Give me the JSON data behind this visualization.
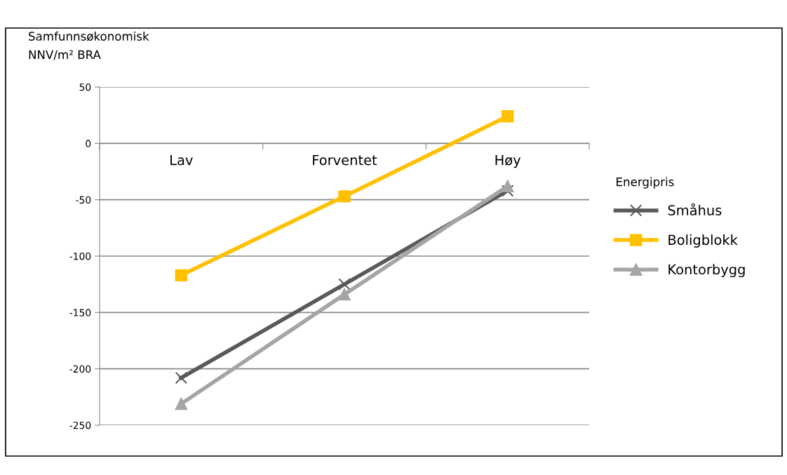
{
  "chart_data": {
    "type": "line",
    "ylabel": "Samfunnsøkonomisk\nNNV/m² BRA",
    "legend_title": "Energipris",
    "categories": [
      "Lav",
      "Forventet",
      "Høy"
    ],
    "series": [
      {
        "name": "Småhus",
        "color": "#595959",
        "marker": "cross",
        "values": [
          -208,
          -125,
          -42
        ]
      },
      {
        "name": "Boligblokk",
        "color": "#ffc000",
        "marker": "square",
        "values": [
          -117,
          -47,
          24
        ]
      },
      {
        "name": "Kontorbygg",
        "color": "#a5a5a5",
        "marker": "triangle",
        "values": [
          -231,
          -134,
          -38
        ]
      }
    ],
    "ylim": [
      -250,
      50
    ],
    "yticks": [
      -250,
      -200,
      -150,
      -100,
      -50,
      0,
      50
    ],
    "grid": "y",
    "legend": "right",
    "line_style": "solid"
  }
}
